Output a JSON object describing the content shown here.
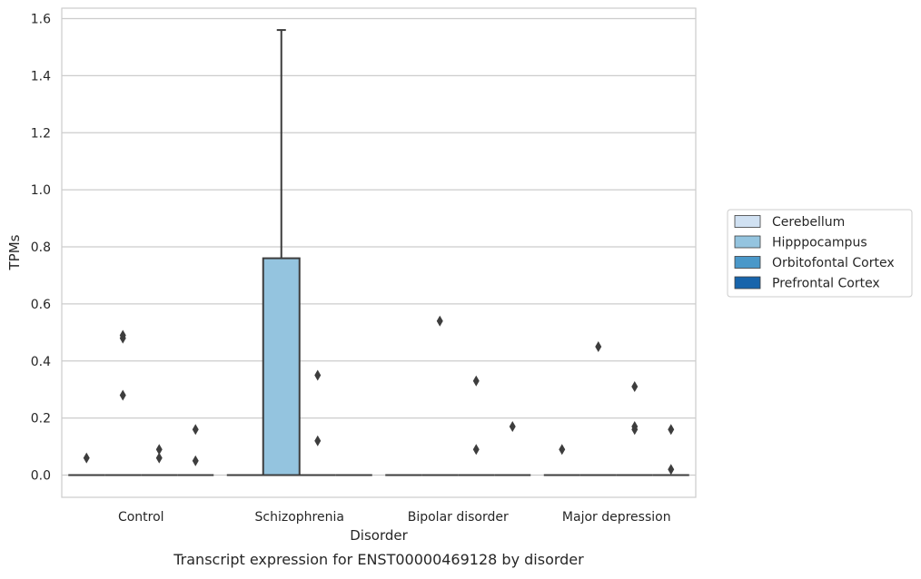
{
  "chart_data": {
    "type": "box",
    "caption": "Transcript expression for ENST00000469128 by disorder",
    "xlabel": "Disorder",
    "ylabel": "TPMs",
    "ylim": [
      -0.075,
      1.64
    ],
    "yticks": [
      0.0,
      0.2,
      0.4,
      0.6,
      0.8,
      1.0,
      1.2,
      1.4,
      1.6
    ],
    "ytick_labels": [
      "0.0",
      "0.2",
      "0.4",
      "0.6",
      "0.8",
      "1.0",
      "1.2",
      "1.4",
      "1.6"
    ],
    "grid": true,
    "legend_position": "outside-right",
    "categories": [
      "Control",
      "Schizophrenia",
      "Bipolar disorder",
      "Major depression"
    ],
    "series": [
      {
        "name": "Cerebellum",
        "color": "#d0e1f2",
        "boxes": [
          {
            "q1": 0,
            "median": 0,
            "q3": 0,
            "whisker_low": 0,
            "whisker_high": 0,
            "outliers": [
              0.06
            ]
          },
          {
            "q1": 0,
            "median": 0,
            "q3": 0,
            "whisker_low": 0,
            "whisker_high": 0,
            "outliers": []
          },
          {
            "q1": 0,
            "median": 0,
            "q3": 0,
            "whisker_low": 0,
            "whisker_high": 0,
            "outliers": []
          },
          {
            "q1": 0,
            "median": 0,
            "q3": 0,
            "whisker_low": 0,
            "whisker_high": 0,
            "outliers": [
              0.09
            ]
          }
        ]
      },
      {
        "name": "Hipppocampus",
        "color": "#94c4df",
        "boxes": [
          {
            "q1": 0,
            "median": 0,
            "q3": 0,
            "whisker_low": 0,
            "whisker_high": 0,
            "outliers": [
              0.48,
              0.49,
              0.28
            ]
          },
          {
            "q1": 0,
            "median": 0,
            "q3": 0.76,
            "whisker_low": 0,
            "whisker_high": 1.56,
            "outliers": []
          },
          {
            "q1": 0,
            "median": 0,
            "q3": 0,
            "whisker_low": 0,
            "whisker_high": 0,
            "outliers": [
              0.54
            ]
          },
          {
            "q1": 0,
            "median": 0,
            "q3": 0,
            "whisker_low": 0,
            "whisker_high": 0,
            "outliers": [
              0.45
            ]
          }
        ]
      },
      {
        "name": "Orbitofontal Cortex",
        "color": "#4a98c9",
        "boxes": [
          {
            "q1": 0,
            "median": 0,
            "q3": 0,
            "whisker_low": 0,
            "whisker_high": 0,
            "outliers": [
              0.09,
              0.06
            ]
          },
          {
            "q1": 0,
            "median": 0,
            "q3": 0,
            "whisker_low": 0,
            "whisker_high": 0,
            "outliers": [
              0.35,
              0.12
            ]
          },
          {
            "q1": 0,
            "median": 0,
            "q3": 0,
            "whisker_low": 0,
            "whisker_high": 0,
            "outliers": [
              0.33,
              0.09
            ]
          },
          {
            "q1": 0,
            "median": 0,
            "q3": 0,
            "whisker_low": 0,
            "whisker_high": 0,
            "outliers": [
              0.31,
              0.17,
              0.16
            ]
          }
        ]
      },
      {
        "name": "Prefrontal Cortex",
        "color": "#1764ab",
        "boxes": [
          {
            "q1": 0,
            "median": 0,
            "q3": 0,
            "whisker_low": 0,
            "whisker_high": 0,
            "outliers": [
              0.16,
              0.05
            ]
          },
          {
            "q1": 0,
            "median": 0,
            "q3": 0,
            "whisker_low": 0,
            "whisker_high": 0,
            "outliers": []
          },
          {
            "q1": 0,
            "median": 0,
            "q3": 0,
            "whisker_low": 0,
            "whisker_high": 0,
            "outliers": [
              0.17
            ]
          },
          {
            "q1": 0,
            "median": 0,
            "q3": 0,
            "whisker_low": 0,
            "whisker_high": 0,
            "outliers": [
              0.16,
              0.02
            ]
          }
        ]
      }
    ]
  }
}
